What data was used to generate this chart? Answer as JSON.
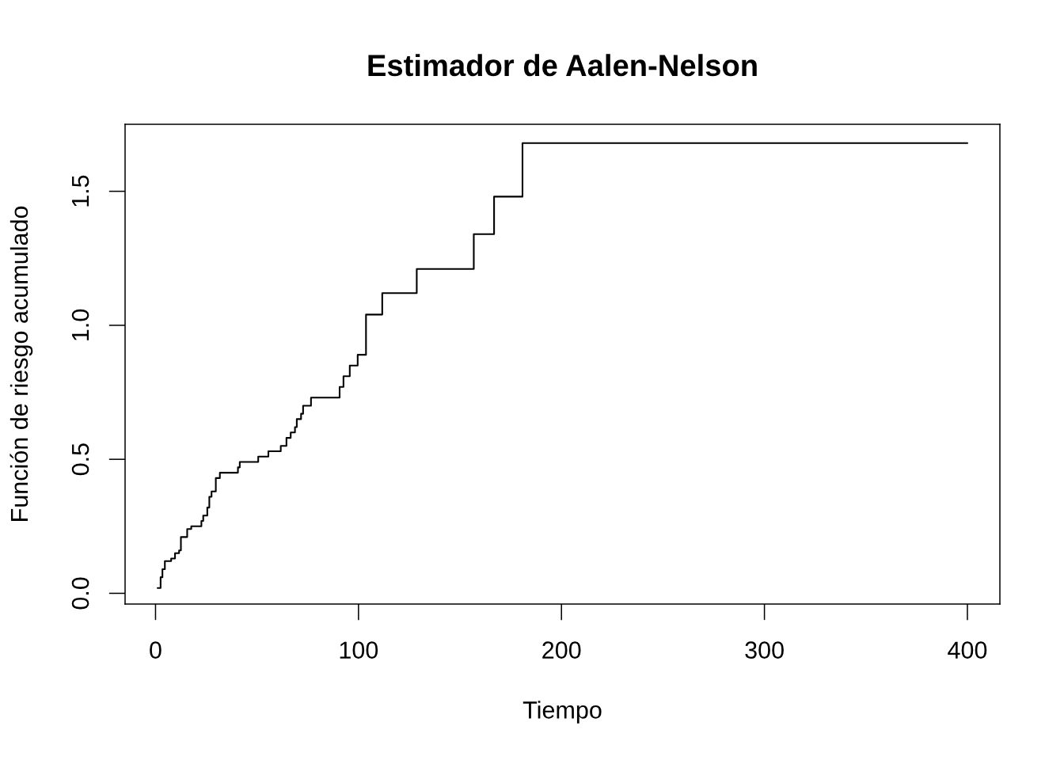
{
  "chart_data": {
    "type": "step",
    "title": "Estimador de Aalen-Nelson",
    "xlabel": "Tiempo",
    "ylabel": "Función de riesgo acumulado",
    "x": [
      1,
      2.5,
      3.4,
      4.6,
      7.7,
      9.6,
      11.6,
      12.5,
      15.6,
      17.6,
      22.6,
      23.5,
      25.5,
      26.5,
      27.6,
      29.7,
      31.7,
      40.6,
      41.5,
      50.6,
      55.6,
      61.7,
      64.5,
      66.6,
      68.7,
      69.6,
      71.7,
      72.7,
      76.6,
      90.7,
      92.6,
      95.7,
      99.6,
      103.7,
      111.7,
      128.7,
      156.8,
      166.8,
      180.8,
      400
    ],
    "series": [
      {
        "color": "#000000",
        "values": [
          0.02,
          0.06,
          0.09,
          0.12,
          0.13,
          0.15,
          0.16,
          0.21,
          0.24,
          0.25,
          0.27,
          0.29,
          0.32,
          0.36,
          0.38,
          0.43,
          0.45,
          0.47,
          0.49,
          0.51,
          0.53,
          0.55,
          0.58,
          0.6,
          0.62,
          0.65,
          0.67,
          0.7,
          0.73,
          0.77,
          0.81,
          0.85,
          0.89,
          1.04,
          1.12,
          1.21,
          1.34,
          1.48,
          1.68,
          1.68
        ]
      }
    ],
    "xlim": [
      -15,
      416
    ],
    "ylim": [
      -0.04,
      1.75
    ],
    "xticks": [
      0,
      100,
      200,
      300,
      400
    ],
    "yticks": [
      {
        "value": 0,
        "label": "0.0"
      },
      0.5,
      {
        "value": 1,
        "label": "1.0"
      },
      1.5
    ],
    "grid": false,
    "legend": false
  }
}
